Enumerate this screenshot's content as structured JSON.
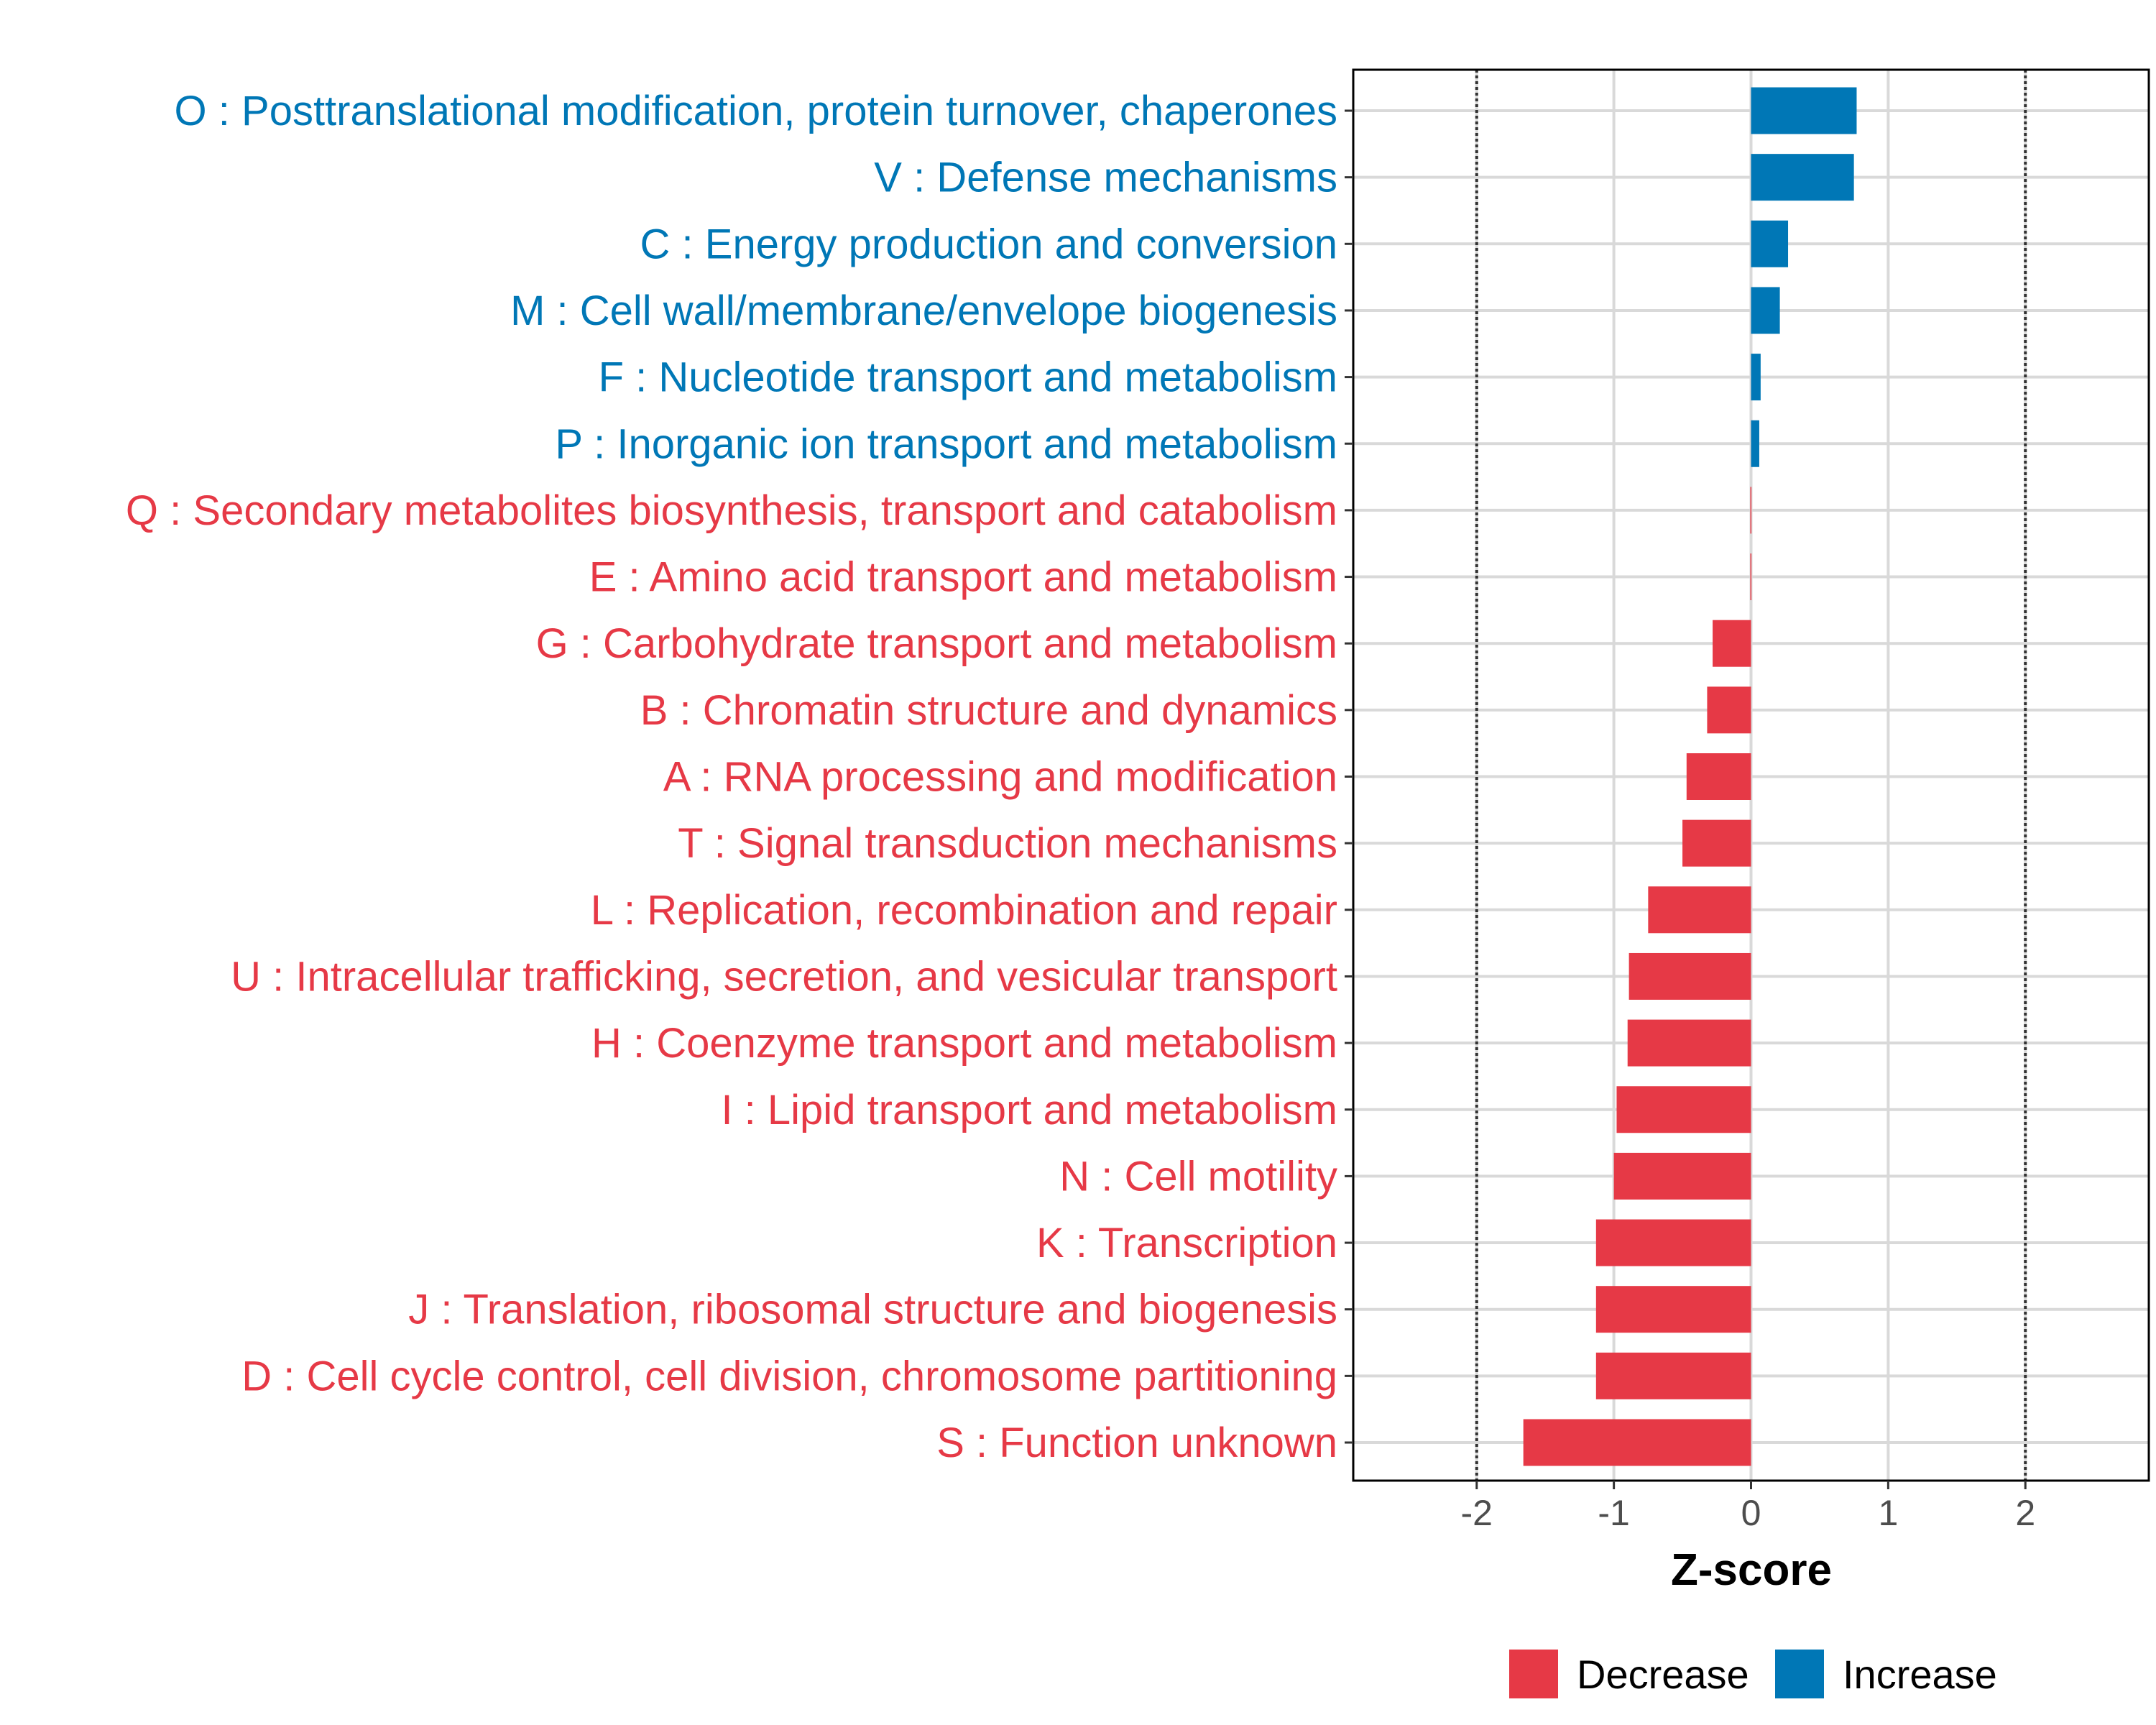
{
  "chart_data": {
    "type": "bar",
    "orientation": "horizontal",
    "title": "",
    "xlabel": "Z-score",
    "ylabel": "",
    "xlim": [
      -2.9,
      2.9
    ],
    "xticks": [
      -2,
      -1,
      0,
      1,
      2
    ],
    "xtick_labels": [
      "-2",
      "-1",
      "0",
      "1",
      "2"
    ],
    "reference_lines": [
      -2,
      2
    ],
    "grid": true,
    "categories": [
      "O : Posttranslational modification, protein turnover, chaperones",
      "V : Defense mechanisms",
      "C : Energy production and conversion",
      "M : Cell wall/membrane/envelope biogenesis",
      "F : Nucleotide transport and metabolism",
      "P : Inorganic ion transport and metabolism",
      "Q : Secondary metabolites biosynthesis, transport and catabolism",
      "E : Amino acid transport and metabolism",
      "G : Carbohydrate transport and metabolism",
      "B : Chromatin structure and dynamics",
      "A : RNA processing and modification",
      "T : Signal transduction mechanisms",
      "L : Replication, recombination and repair",
      "U : Intracellular trafficking, secretion, and vesicular transport",
      "H : Coenzyme transport and metabolism",
      "I : Lipid transport and metabolism",
      "N : Cell motility",
      "K : Transcription",
      "J : Translation, ribosomal structure and biogenesis",
      "D : Cell cycle control, cell division, chromosome partitioning",
      "S : Function unknown"
    ],
    "values": [
      0.77,
      0.75,
      0.27,
      0.21,
      0.07,
      0.06,
      -0.005,
      -0.005,
      -0.28,
      -0.32,
      -0.47,
      -0.5,
      -0.75,
      -0.89,
      -0.9,
      -0.98,
      -1.0,
      -1.13,
      -1.13,
      -1.13,
      -1.66
    ],
    "groups": [
      "Increase",
      "Increase",
      "Increase",
      "Increase",
      "Increase",
      "Increase",
      "Decrease",
      "Decrease",
      "Decrease",
      "Decrease",
      "Decrease",
      "Decrease",
      "Decrease",
      "Decrease",
      "Decrease",
      "Decrease",
      "Decrease",
      "Decrease",
      "Decrease",
      "Decrease",
      "Decrease"
    ],
    "legend": {
      "position": "bottom",
      "items": [
        {
          "label": "Decrease",
          "color": "#E63946"
        },
        {
          "label": "Increase",
          "color": "#0077B6"
        }
      ]
    },
    "colors": {
      "Decrease": "#E63946",
      "Increase": "#0077B6"
    }
  }
}
